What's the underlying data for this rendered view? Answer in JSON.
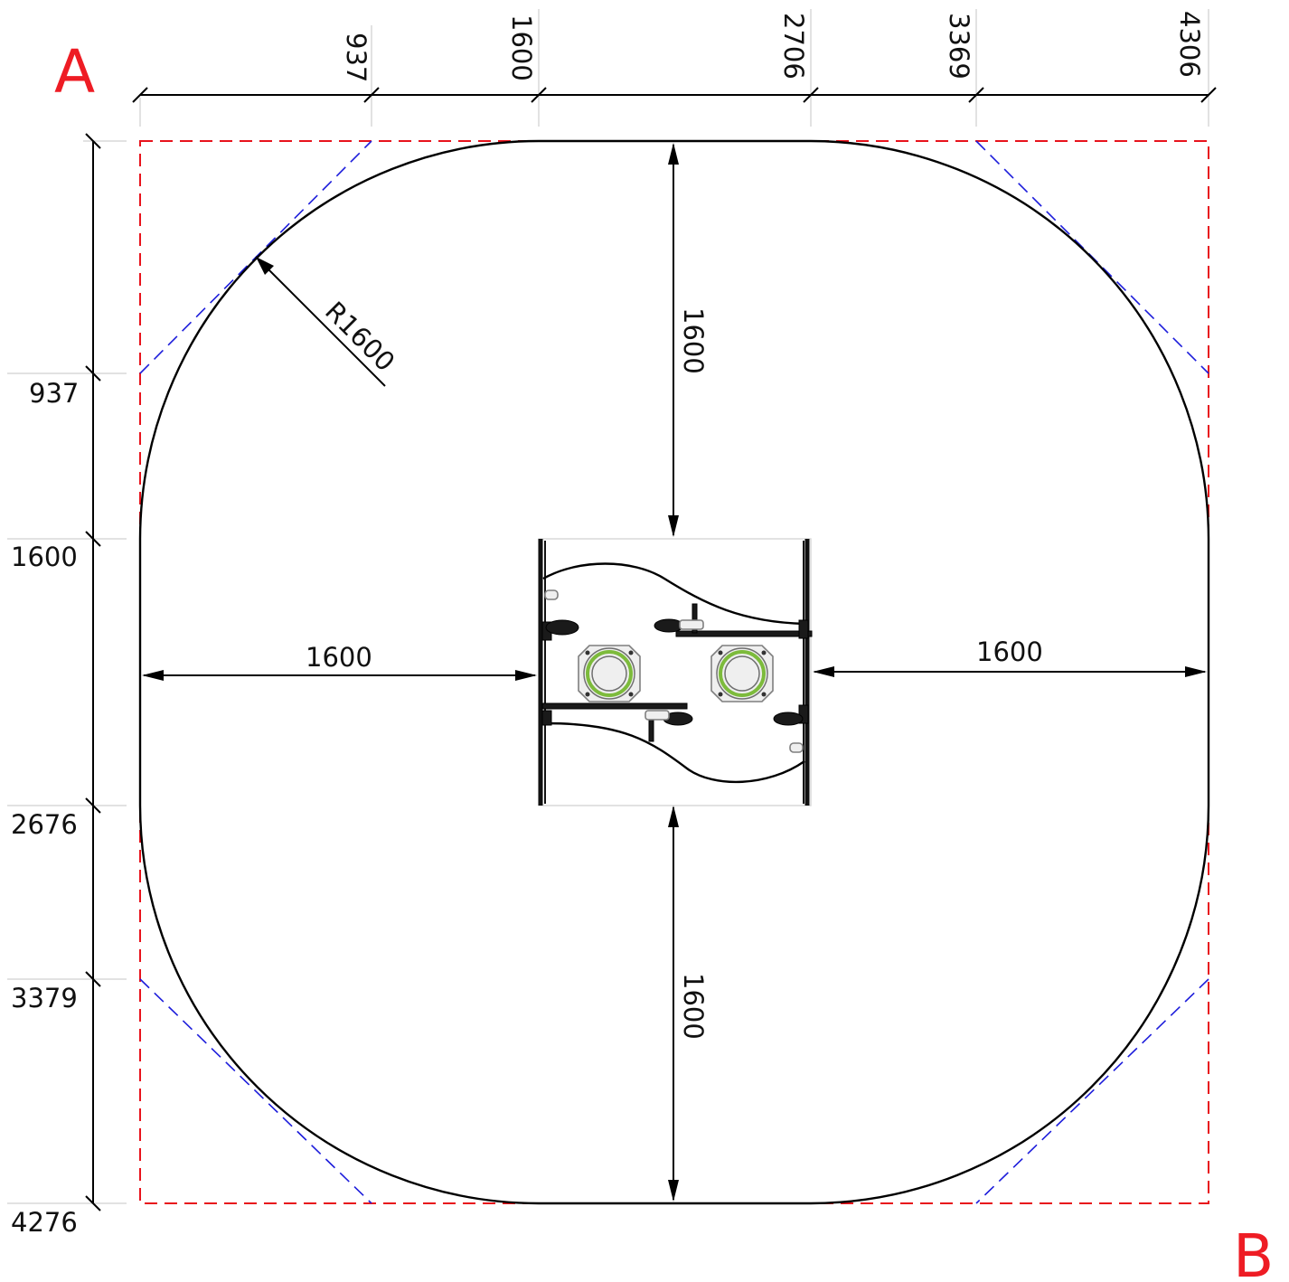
{
  "corner_labels": {
    "top_left": "A",
    "bottom_right": "B"
  },
  "colors": {
    "safety_zone_rect": "#e8131c",
    "chamfer_lines": "#1d1ddb",
    "corner_labels": "#ee1c24",
    "spring_coil": "#7dbb3c"
  },
  "top_dimensions": [
    "937",
    "1600",
    "2706",
    "3369",
    "4306"
  ],
  "left_dimensions": [
    "937",
    "1600",
    "2676",
    "3379",
    "4276"
  ],
  "inner_dimensions": {
    "top": "1600",
    "bottom": "1600",
    "left": "1600",
    "right": "1600",
    "radius": "R1600"
  },
  "icons": {
    "springer_left": "spring-rocker-icon",
    "springer_right": "spring-rocker-icon"
  }
}
